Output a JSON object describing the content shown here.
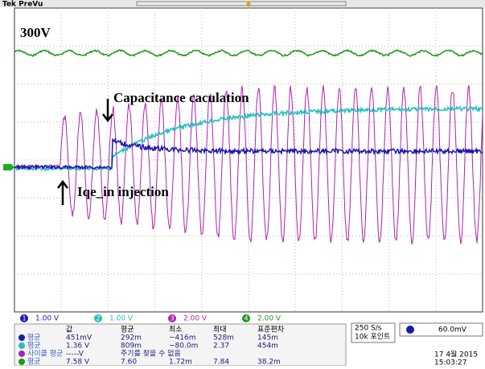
{
  "header": {
    "title": "Tek PreVu"
  },
  "screen": {
    "voltage_label": "300V",
    "annotation_top": "Capacitance caculation",
    "annotation_bottom": "Iqe_in  injection"
  },
  "channels": [
    {
      "number": "1",
      "scale": "1.00 V"
    },
    {
      "number": "2",
      "scale": "1.00 V"
    },
    {
      "number": "3",
      "scale": "2.00 V"
    },
    {
      "number": "4",
      "scale": "2.00 V"
    }
  ],
  "measurements": {
    "header": [
      "값",
      "평균",
      "최소",
      "최대",
      "표준편차"
    ],
    "rows": [
      [
        "평균",
        "451mV",
        "292m",
        "−416m",
        "528m",
        "145m"
      ],
      [
        "평균",
        "1.36 V",
        "809m",
        "−80.0m",
        "2.37",
        "454m"
      ],
      [
        "사이클 평균",
        "-----V",
        "주기를 찾을 수 없음"
      ],
      [
        "평균",
        "7.58 V",
        "7.60",
        "1.72m",
        "7.84",
        "38.2m"
      ]
    ]
  },
  "acquisition": {
    "rate": "250 S/s",
    "points": "10k 포인트"
  },
  "trigger": {
    "level": "60.0mV"
  },
  "timestamp": {
    "date": "17 4월 2015",
    "time": "15:03:27"
  }
}
